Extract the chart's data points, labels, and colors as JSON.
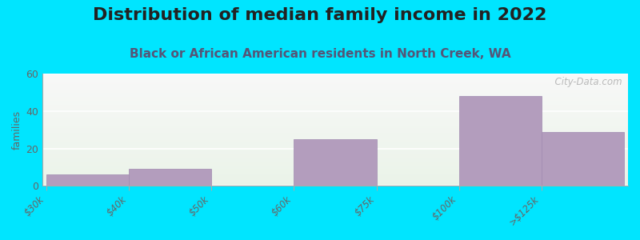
{
  "title": "Distribution of median family income in 2022",
  "subtitle": "Black or African American residents in North Creek, WA",
  "tick_labels": [
    "$30k",
    "$40k",
    "$50k",
    "$60k",
    "$75k",
    "$100k",
    ">$125k"
  ],
  "bar_values": [
    6,
    9,
    25,
    48,
    29
  ],
  "bar_left_edges": [
    0,
    1,
    3,
    5,
    6
  ],
  "bar_widths": [
    1,
    1,
    1,
    1,
    1
  ],
  "bar_color": "#b39dbd",
  "bar_edge_color": "#a08ab0",
  "background_color": "#00e5ff",
  "ylabel": "families",
  "ylim": [
    0,
    60
  ],
  "yticks": [
    0,
    20,
    40,
    60
  ],
  "xtick_positions": [
    0,
    1,
    2,
    3,
    4,
    5,
    6
  ],
  "title_fontsize": 16,
  "subtitle_fontsize": 11,
  "subtitle_color": "#555577",
  "watermark": "  City-Data.com"
}
